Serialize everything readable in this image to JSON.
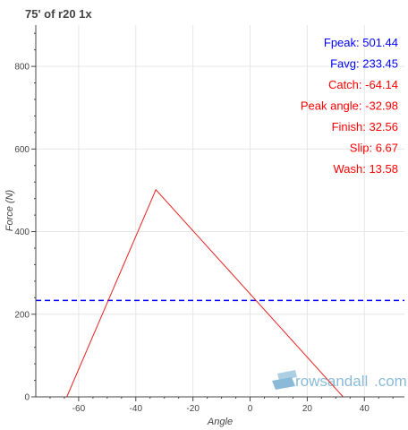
{
  "chart_data": {
    "type": "line",
    "title": "75' of r20 1x",
    "xlabel": "Angle",
    "ylabel": "Force (N)",
    "xlim": [
      -75,
      54
    ],
    "ylim": [
      0,
      900
    ],
    "x_ticks": [
      -60,
      -40,
      -20,
      0,
      20,
      40
    ],
    "y_ticks": [
      0,
      200,
      400,
      600,
      800
    ],
    "grid": true,
    "series": [
      {
        "color": "#e8221f",
        "style": "solid",
        "points": [
          {
            "x": -64.14,
            "y": 0
          },
          {
            "x": -32.98,
            "y": 501.44
          },
          {
            "x": 32.56,
            "y": 0
          }
        ]
      }
    ],
    "reference_lines": [
      {
        "orientation": "horizontal",
        "y": 233.45,
        "color": "#0000ff",
        "style": "dashed"
      }
    ],
    "annotations": [
      {
        "text": "Fpeak: 501.44",
        "color": "#0000ff"
      },
      {
        "text": "Favg: 233.45",
        "color": "#0000ff"
      },
      {
        "text": "Catch: -64.14",
        "color": "#ff0000"
      },
      {
        "text": "Peak angle: -32.98",
        "color": "#ff0000"
      },
      {
        "text": "Finish:  32.56",
        "color": "#ff0000"
      },
      {
        "text": "Slip:   6.67",
        "color": "#ff0000"
      },
      {
        "text": "Wash:  13.58",
        "color": "#ff0000"
      }
    ]
  },
  "watermark": {
    "text_main": "rowsandall",
    "text_suffix": ".com",
    "color": "#7fb3d5"
  }
}
